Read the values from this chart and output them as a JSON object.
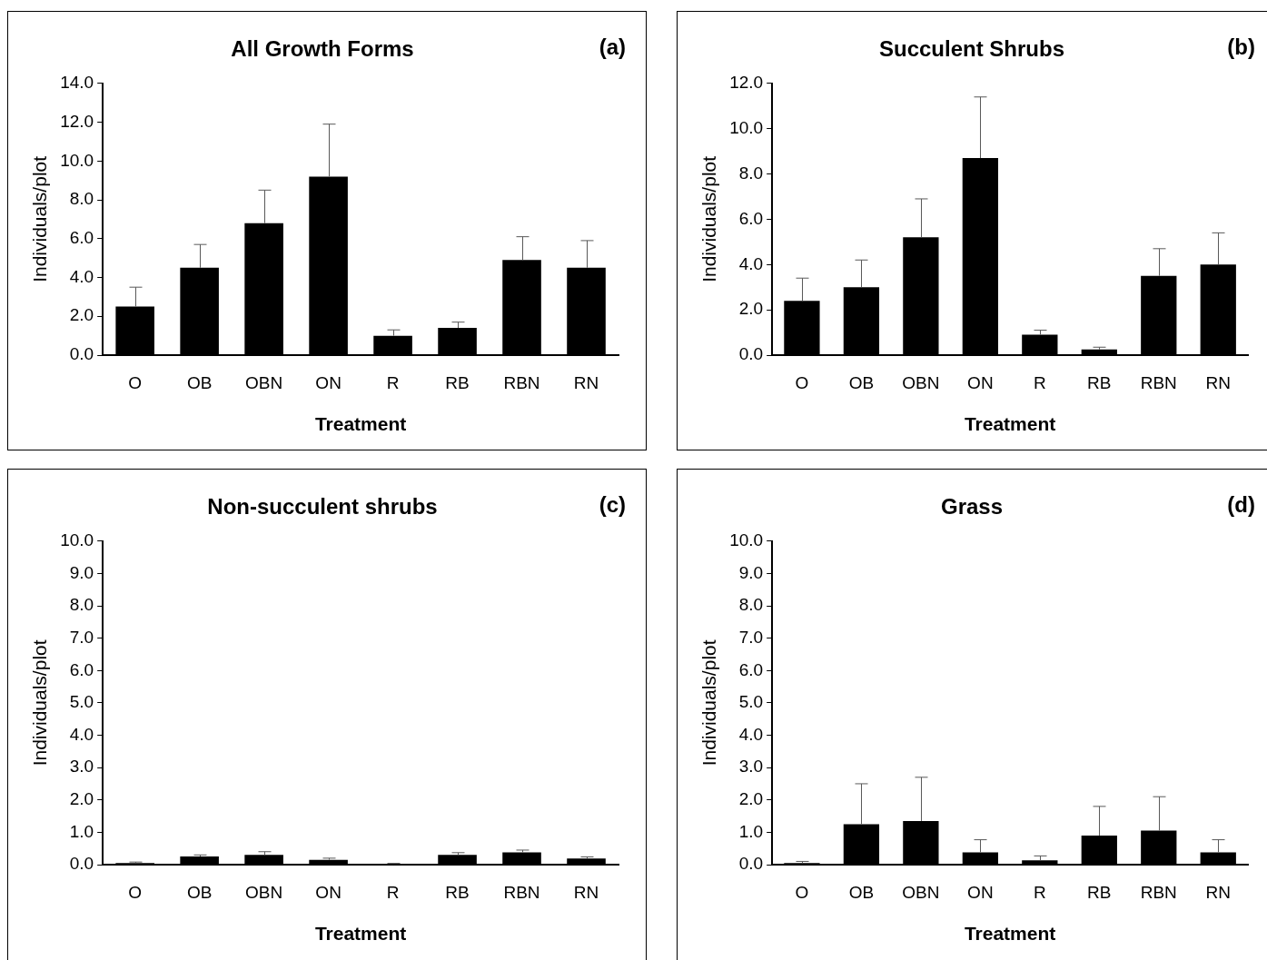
{
  "chart_data": [
    {
      "type": "bar",
      "title": "All Growth Forms",
      "xlabel": "Treatment",
      "ylabel": "Individuals/plot",
      "annotations": [
        "(a)"
      ],
      "categories": [
        "O",
        "OB",
        "OBN",
        "ON",
        "R",
        "RB",
        "RBN",
        "RN"
      ],
      "color": "#000000",
      "values": [
        2.5,
        4.5,
        6.8,
        9.2,
        1.0,
        1.4,
        4.9,
        4.5
      ],
      "errors": [
        [
          2.5,
          3.5
        ],
        [
          4.5,
          5.7
        ],
        [
          6.8,
          8.5
        ],
        [
          9.2,
          11.9
        ],
        [
          1.0,
          1.3
        ],
        [
          1.4,
          1.7
        ],
        [
          4.9,
          6.1
        ],
        [
          4.5,
          5.9
        ]
      ],
      "ylim": [
        0,
        14
      ],
      "yticks": [
        {
          "value": 0,
          "label": "0.0"
        },
        {
          "value": 2,
          "label": "2.0"
        },
        {
          "value": 4,
          "label": "4.0"
        },
        {
          "value": 6,
          "label": "6.0"
        },
        {
          "value": 8,
          "label": "8.0"
        },
        {
          "value": 10,
          "label": "10.0"
        },
        {
          "value": 12,
          "label": "12.0"
        },
        {
          "value": 14,
          "label": "14.0"
        }
      ],
      "grid": false,
      "legend": false
    },
    {
      "type": "bar",
      "title": "Succulent Shrubs",
      "xlabel": "Treatment",
      "ylabel": "Individuals/plot",
      "annotations": [
        "(b)"
      ],
      "categories": [
        "O",
        "OB",
        "OBN",
        "ON",
        "R",
        "RB",
        "RBN",
        "RN"
      ],
      "color": "#000000",
      "values": [
        2.4,
        3.0,
        5.2,
        8.7,
        0.9,
        0.25,
        3.5,
        4.0
      ],
      "errors": [
        [
          2.4,
          3.4
        ],
        [
          3.0,
          4.2
        ],
        [
          5.2,
          6.9
        ],
        [
          8.7,
          11.4
        ],
        [
          0.9,
          1.1
        ],
        [
          0.25,
          0.35
        ],
        [
          3.5,
          4.7
        ],
        [
          4.0,
          5.4
        ]
      ],
      "ylim": [
        0,
        12
      ],
      "yticks": [
        {
          "value": 0,
          "label": "0.0"
        },
        {
          "value": 2,
          "label": "2.0"
        },
        {
          "value": 4,
          "label": "4.0"
        },
        {
          "value": 6,
          "label": "6.0"
        },
        {
          "value": 8,
          "label": "8.0"
        },
        {
          "value": 10,
          "label": "10.0"
        },
        {
          "value": 12,
          "label": "12.0"
        }
      ],
      "grid": false,
      "legend": false
    },
    {
      "type": "bar",
      "title": "Non-succulent shrubs",
      "xlabel": "Treatment",
      "ylabel": "Individuals/plot",
      "annotations": [
        "(c)"
      ],
      "categories": [
        "O",
        "OB",
        "OBN",
        "ON",
        "R",
        "RB",
        "RBN",
        "RN"
      ],
      "color": "#000000",
      "values": [
        0.05,
        0.25,
        0.3,
        0.15,
        0.02,
        0.3,
        0.38,
        0.19
      ],
      "errors": [
        [
          0.05,
          0.08
        ],
        [
          0.25,
          0.3
        ],
        [
          0.3,
          0.4
        ],
        [
          0.15,
          0.2
        ],
        [
          0.02,
          0.04
        ],
        [
          0.3,
          0.37
        ],
        [
          0.38,
          0.45
        ],
        [
          0.19,
          0.24
        ]
      ],
      "ylim": [
        0,
        10
      ],
      "yticks": [
        {
          "value": 0,
          "label": "0.0"
        },
        {
          "value": 1,
          "label": "1.0"
        },
        {
          "value": 2,
          "label": "2.0"
        },
        {
          "value": 3,
          "label": "3.0"
        },
        {
          "value": 4,
          "label": "4.0"
        },
        {
          "value": 5,
          "label": "5.0"
        },
        {
          "value": 6,
          "label": "6.0"
        },
        {
          "value": 7,
          "label": "7.0"
        },
        {
          "value": 8,
          "label": "8.0"
        },
        {
          "value": 9,
          "label": "9.0"
        },
        {
          "value": 10,
          "label": "10.0"
        }
      ],
      "grid": false,
      "legend": false
    },
    {
      "type": "bar",
      "title": "Grass",
      "xlabel": "Treatment",
      "ylabel": "Individuals/plot",
      "annotations": [
        "(d)"
      ],
      "categories": [
        "O",
        "OB",
        "OBN",
        "ON",
        "R",
        "RB",
        "RBN",
        "RN"
      ],
      "color": "#000000",
      "values": [
        0.05,
        1.25,
        1.35,
        0.38,
        0.13,
        0.9,
        1.05,
        0.38
      ],
      "errors": [
        [
          0.05,
          0.1
        ],
        [
          1.25,
          2.5
        ],
        [
          1.35,
          2.7
        ],
        [
          0.38,
          0.77
        ],
        [
          0.13,
          0.27
        ],
        [
          0.9,
          1.8
        ],
        [
          1.05,
          2.1
        ],
        [
          0.38,
          0.77
        ]
      ],
      "ylim": [
        0,
        10
      ],
      "yticks": [
        {
          "value": 0,
          "label": "0.0"
        },
        {
          "value": 1,
          "label": "1.0"
        },
        {
          "value": 2,
          "label": "2.0"
        },
        {
          "value": 3,
          "label": "3.0"
        },
        {
          "value": 4,
          "label": "4.0"
        },
        {
          "value": 5,
          "label": "5.0"
        },
        {
          "value": 6,
          "label": "6.0"
        },
        {
          "value": 7,
          "label": "7.0"
        },
        {
          "value": 8,
          "label": "8.0"
        },
        {
          "value": 9,
          "label": "9.0"
        },
        {
          "value": 10,
          "label": "10.0"
        }
      ],
      "grid": false,
      "legend": false
    }
  ]
}
